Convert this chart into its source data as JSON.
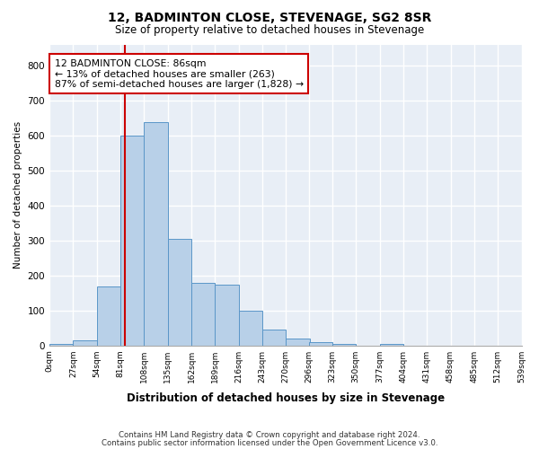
{
  "title": "12, BADMINTON CLOSE, STEVENAGE, SG2 8SR",
  "subtitle": "Size of property relative to detached houses in Stevenage",
  "xlabel": "Distribution of detached houses by size in Stevenage",
  "ylabel": "Number of detached properties",
  "bar_color": "#b8d0e8",
  "bar_edge_color": "#5a96c8",
  "background_color": "#e8eef6",
  "grid_color": "#ffffff",
  "property_line_x": 86,
  "annotation_text": "12 BADMINTON CLOSE: 86sqm\n← 13% of detached houses are smaller (263)\n87% of semi-detached houses are larger (1,828) →",
  "annotation_box_color": "#ffffff",
  "annotation_box_edge_color": "#cc0000",
  "annotation_text_color": "#000000",
  "bin_edges": [
    0,
    27,
    54,
    81,
    108,
    135,
    162,
    189,
    216,
    243,
    270,
    296,
    323,
    350,
    377,
    404,
    431,
    458,
    485,
    512,
    539
  ],
  "bin_labels": [
    "0sqm",
    "27sqm",
    "54sqm",
    "81sqm",
    "108sqm",
    "135sqm",
    "162sqm",
    "189sqm",
    "216sqm",
    "243sqm",
    "270sqm",
    "296sqm",
    "323sqm",
    "350sqm",
    "377sqm",
    "404sqm",
    "431sqm",
    "458sqm",
    "485sqm",
    "512sqm",
    "539sqm"
  ],
  "bar_heights": [
    5,
    15,
    170,
    600,
    640,
    305,
    180,
    175,
    100,
    45,
    20,
    10,
    5,
    0,
    5,
    0,
    0,
    0,
    0,
    0
  ],
  "ylim": [
    0,
    860
  ],
  "yticks": [
    0,
    100,
    200,
    300,
    400,
    500,
    600,
    700,
    800
  ],
  "footer_line1": "Contains HM Land Registry data © Crown copyright and database right 2024.",
  "footer_line2": "Contains public sector information licensed under the Open Government Licence v3.0."
}
